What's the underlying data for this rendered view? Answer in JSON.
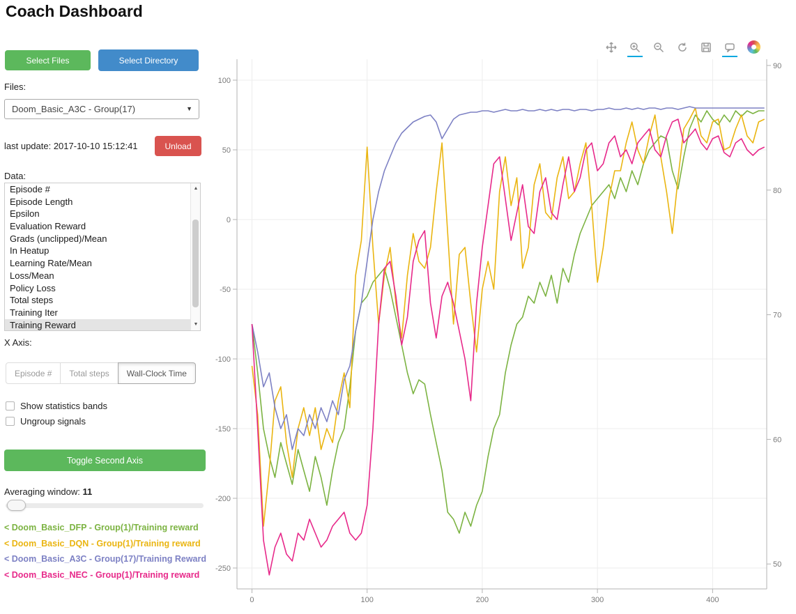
{
  "title": "Coach Dashboard",
  "sidebar": {
    "select_files": "Select Files",
    "select_directory": "Select Directory",
    "files_label": "Files:",
    "file_select": {
      "value": "Doom_Basic_A3C - Group(17)"
    },
    "last_update": "last update: 2017-10-10 15:12:41",
    "unload": "Unload",
    "data_label": "Data:",
    "data_list": {
      "items": [
        "Episode #",
        "Episode Length",
        "Epsilon",
        "Evaluation Reward",
        "Grads (unclipped)/Mean",
        "In Heatup",
        "Learning Rate/Mean",
        "Loss/Mean",
        "Policy Loss",
        "Total steps",
        "Training Iter",
        "Training Reward"
      ],
      "selected": "Training Reward"
    },
    "xaxis_label": "X Axis:",
    "xaxis_options": [
      {
        "label": "Episode #",
        "active": false
      },
      {
        "label": "Total steps",
        "active": false
      },
      {
        "label": "Wall-Clock Time",
        "active": true
      }
    ],
    "checkboxes": [
      {
        "label": "Show statistics bands",
        "checked": false
      },
      {
        "label": "Ungroup signals",
        "checked": false
      }
    ],
    "toggle_second_axis": "Toggle Second Axis",
    "averaging_label": "Averaging window:",
    "averaging_value": "11",
    "legend": [
      {
        "label": "< Doom_Basic_DFP - Group(1)/Training reward",
        "color": "#7cb342"
      },
      {
        "label": "< Doom_Basic_DQN - Group(1)/Training reward",
        "color": "#eab511"
      },
      {
        "label": "< Doom_Basic_A3C - Group(17)/Training Reward",
        "color": "#7d81c4"
      },
      {
        "label": "< Doom_Basic_NEC - Group(1)/Training reward",
        "color": "#e7298a"
      }
    ]
  },
  "toolbar": {
    "tools": [
      {
        "name": "pan",
        "active": false
      },
      {
        "name": "box-zoom",
        "active": true
      },
      {
        "name": "wheel-zoom",
        "active": false
      },
      {
        "name": "reset",
        "active": false
      },
      {
        "name": "save",
        "active": false
      },
      {
        "name": "hover",
        "active": true
      }
    ]
  },
  "chart_data": {
    "type": "line",
    "title": "",
    "xlabel": "",
    "ylabel": "",
    "legend_position": "sidebar-bottom-left",
    "grid": true,
    "xlim": [
      -13,
      447
    ],
    "ylim_left": [
      -265,
      115
    ],
    "ylim_right": [
      48,
      90.5
    ],
    "x_ticks": [
      0,
      100,
      200,
      300,
      400
    ],
    "y_ticks_left": [
      100,
      50,
      0,
      -50,
      -100,
      -150,
      -200,
      -250
    ],
    "y_ticks_right": [
      90,
      80,
      70,
      60,
      50
    ],
    "x": [
      0,
      5,
      10,
      15,
      20,
      25,
      30,
      35,
      40,
      45,
      50,
      55,
      60,
      65,
      70,
      75,
      80,
      85,
      90,
      95,
      100,
      105,
      110,
      115,
      120,
      125,
      130,
      135,
      140,
      145,
      150,
      155,
      160,
      165,
      170,
      175,
      180,
      185,
      190,
      195,
      200,
      205,
      210,
      215,
      220,
      225,
      230,
      235,
      240,
      245,
      250,
      255,
      260,
      265,
      270,
      275,
      280,
      285,
      290,
      295,
      300,
      305,
      310,
      315,
      320,
      325,
      330,
      335,
      340,
      345,
      350,
      355,
      360,
      365,
      370,
      375,
      380,
      385,
      390,
      395,
      400,
      405,
      410,
      415,
      420,
      425,
      430,
      435,
      440,
      445
    ],
    "series": [
      {
        "name": "Doom_Basic_DFP - Group(1)/Training reward",
        "color": "#7cb342",
        "values": [
          -75,
          -110,
          -150,
          -170,
          -185,
          -160,
          -175,
          -190,
          -165,
          -180,
          -195,
          -170,
          -185,
          -205,
          -180,
          -160,
          -150,
          -120,
          -80,
          -60,
          -55,
          -45,
          -40,
          -35,
          -50,
          -70,
          -90,
          -110,
          -125,
          -115,
          -118,
          -140,
          -160,
          -180,
          -210,
          -215,
          -225,
          -210,
          -220,
          -205,
          -195,
          -170,
          -150,
          -140,
          -110,
          -90,
          -75,
          -70,
          -55,
          -60,
          -45,
          -55,
          -40,
          -60,
          -35,
          -45,
          -25,
          -10,
          0,
          10,
          15,
          20,
          25,
          15,
          30,
          20,
          35,
          25,
          40,
          50,
          55,
          60,
          58,
          35,
          22,
          45,
          65,
          75,
          70,
          78,
          72,
          68,
          75,
          70,
          78,
          74,
          78,
          76,
          78,
          78
        ]
      },
      {
        "name": "Doom_Basic_DQN - Group(1)/Training reward",
        "color": "#eab511",
        "values": [
          -105,
          -140,
          -220,
          -180,
          -130,
          -120,
          -160,
          -185,
          -150,
          -135,
          -155,
          -135,
          -165,
          -150,
          -160,
          -130,
          -110,
          -135,
          -40,
          -15,
          52,
          -20,
          -75,
          -40,
          -20,
          -60,
          -85,
          -40,
          -10,
          -30,
          -35,
          -20,
          20,
          55,
          -10,
          -75,
          -25,
          -20,
          -60,
          -95,
          -50,
          -30,
          -50,
          20,
          45,
          10,
          30,
          -35,
          -20,
          25,
          40,
          5,
          0,
          30,
          45,
          15,
          20,
          40,
          55,
          10,
          -45,
          -20,
          15,
          35,
          35,
          55,
          70,
          50,
          40,
          60,
          75,
          45,
          20,
          -10,
          30,
          65,
          72,
          80,
          60,
          55,
          70,
          72,
          50,
          52,
          65,
          75,
          60,
          55,
          70,
          72
        ]
      },
      {
        "name": "Doom_Basic_A3C - Group(17)/Training Reward",
        "color": "#7d81c4",
        "values": [
          -75,
          -95,
          -120,
          -110,
          -135,
          -150,
          -140,
          -165,
          -150,
          -155,
          -140,
          -150,
          -135,
          -145,
          -130,
          -140,
          -115,
          -105,
          -80,
          -60,
          -30,
          0,
          20,
          35,
          45,
          55,
          62,
          66,
          70,
          72,
          74,
          75,
          70,
          58,
          65,
          72,
          75,
          76,
          77,
          77,
          78,
          78,
          77,
          78,
          79,
          78,
          78,
          79,
          78,
          78,
          79,
          78,
          79,
          78,
          79,
          79,
          78,
          79,
          79,
          78,
          79,
          79,
          80,
          79,
          79,
          80,
          79,
          80,
          79,
          80,
          80,
          79,
          80,
          80,
          79,
          80,
          81,
          80,
          80,
          80,
          80,
          80,
          80,
          80,
          80,
          80,
          80,
          80,
          80,
          80
        ]
      },
      {
        "name": "Doom_Basic_NEC - Group(1)/Training reward",
        "color": "#e7298a",
        "values": [
          -75,
          -150,
          -230,
          -255,
          -235,
          -225,
          -240,
          -245,
          -225,
          -230,
          -215,
          -225,
          -235,
          -230,
          -220,
          -215,
          -210,
          -225,
          -230,
          -225,
          -205,
          -150,
          -75,
          -35,
          -30,
          -55,
          -90,
          -70,
          -30,
          -15,
          -8,
          -60,
          -85,
          -55,
          -45,
          -60,
          -80,
          -100,
          -130,
          -60,
          -20,
          10,
          40,
          45,
          15,
          -15,
          5,
          25,
          -5,
          -10,
          20,
          30,
          5,
          0,
          25,
          45,
          20,
          30,
          50,
          55,
          35,
          40,
          55,
          60,
          45,
          50,
          40,
          55,
          60,
          65,
          50,
          45,
          60,
          70,
          72,
          55,
          60,
          65,
          55,
          50,
          58,
          60,
          48,
          45,
          55,
          58,
          50,
          46,
          50,
          52
        ]
      }
    ]
  }
}
